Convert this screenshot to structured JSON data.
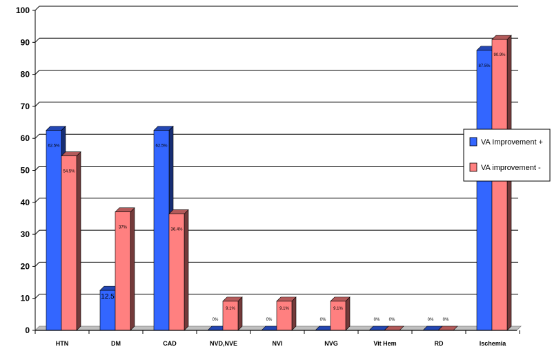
{
  "chart_data": {
    "type": "bar",
    "categories": [
      "HTN",
      "DM",
      "CAD",
      "NVD,NVE",
      "NVI",
      "NVG",
      "Vit Hem",
      "RD",
      "Ischemia"
    ],
    "series": [
      {
        "name": "VA Improvement +",
        "color": "#3366FF",
        "values": [
          62.5,
          12.5,
          62.5,
          0,
          0,
          0,
          0,
          0,
          87.5
        ],
        "labels": [
          "62.5%",
          "12.5",
          "62.5%",
          "0%",
          "0%",
          "0%",
          "0%",
          "0%",
          "87.5%"
        ]
      },
      {
        "name": "VA improvement -",
        "color": "#FF8080",
        "values": [
          54.5,
          37,
          36.4,
          9.1,
          9.1,
          9.1,
          0,
          0,
          90.9
        ],
        "labels": [
          "54.5%",
          "37%",
          "36.4%",
          "9.1%",
          "9.1%",
          "9.1%",
          "0%",
          "0%",
          "90.9%"
        ]
      }
    ],
    "ylim": [
      0,
      100
    ],
    "yticks": [
      "0",
      "10",
      "20",
      "30",
      "40",
      "50",
      "60",
      "70",
      "80",
      "90",
      "100"
    ],
    "grid": true,
    "legend_position": "right",
    "title": "",
    "xlabel": "",
    "ylabel": ""
  }
}
